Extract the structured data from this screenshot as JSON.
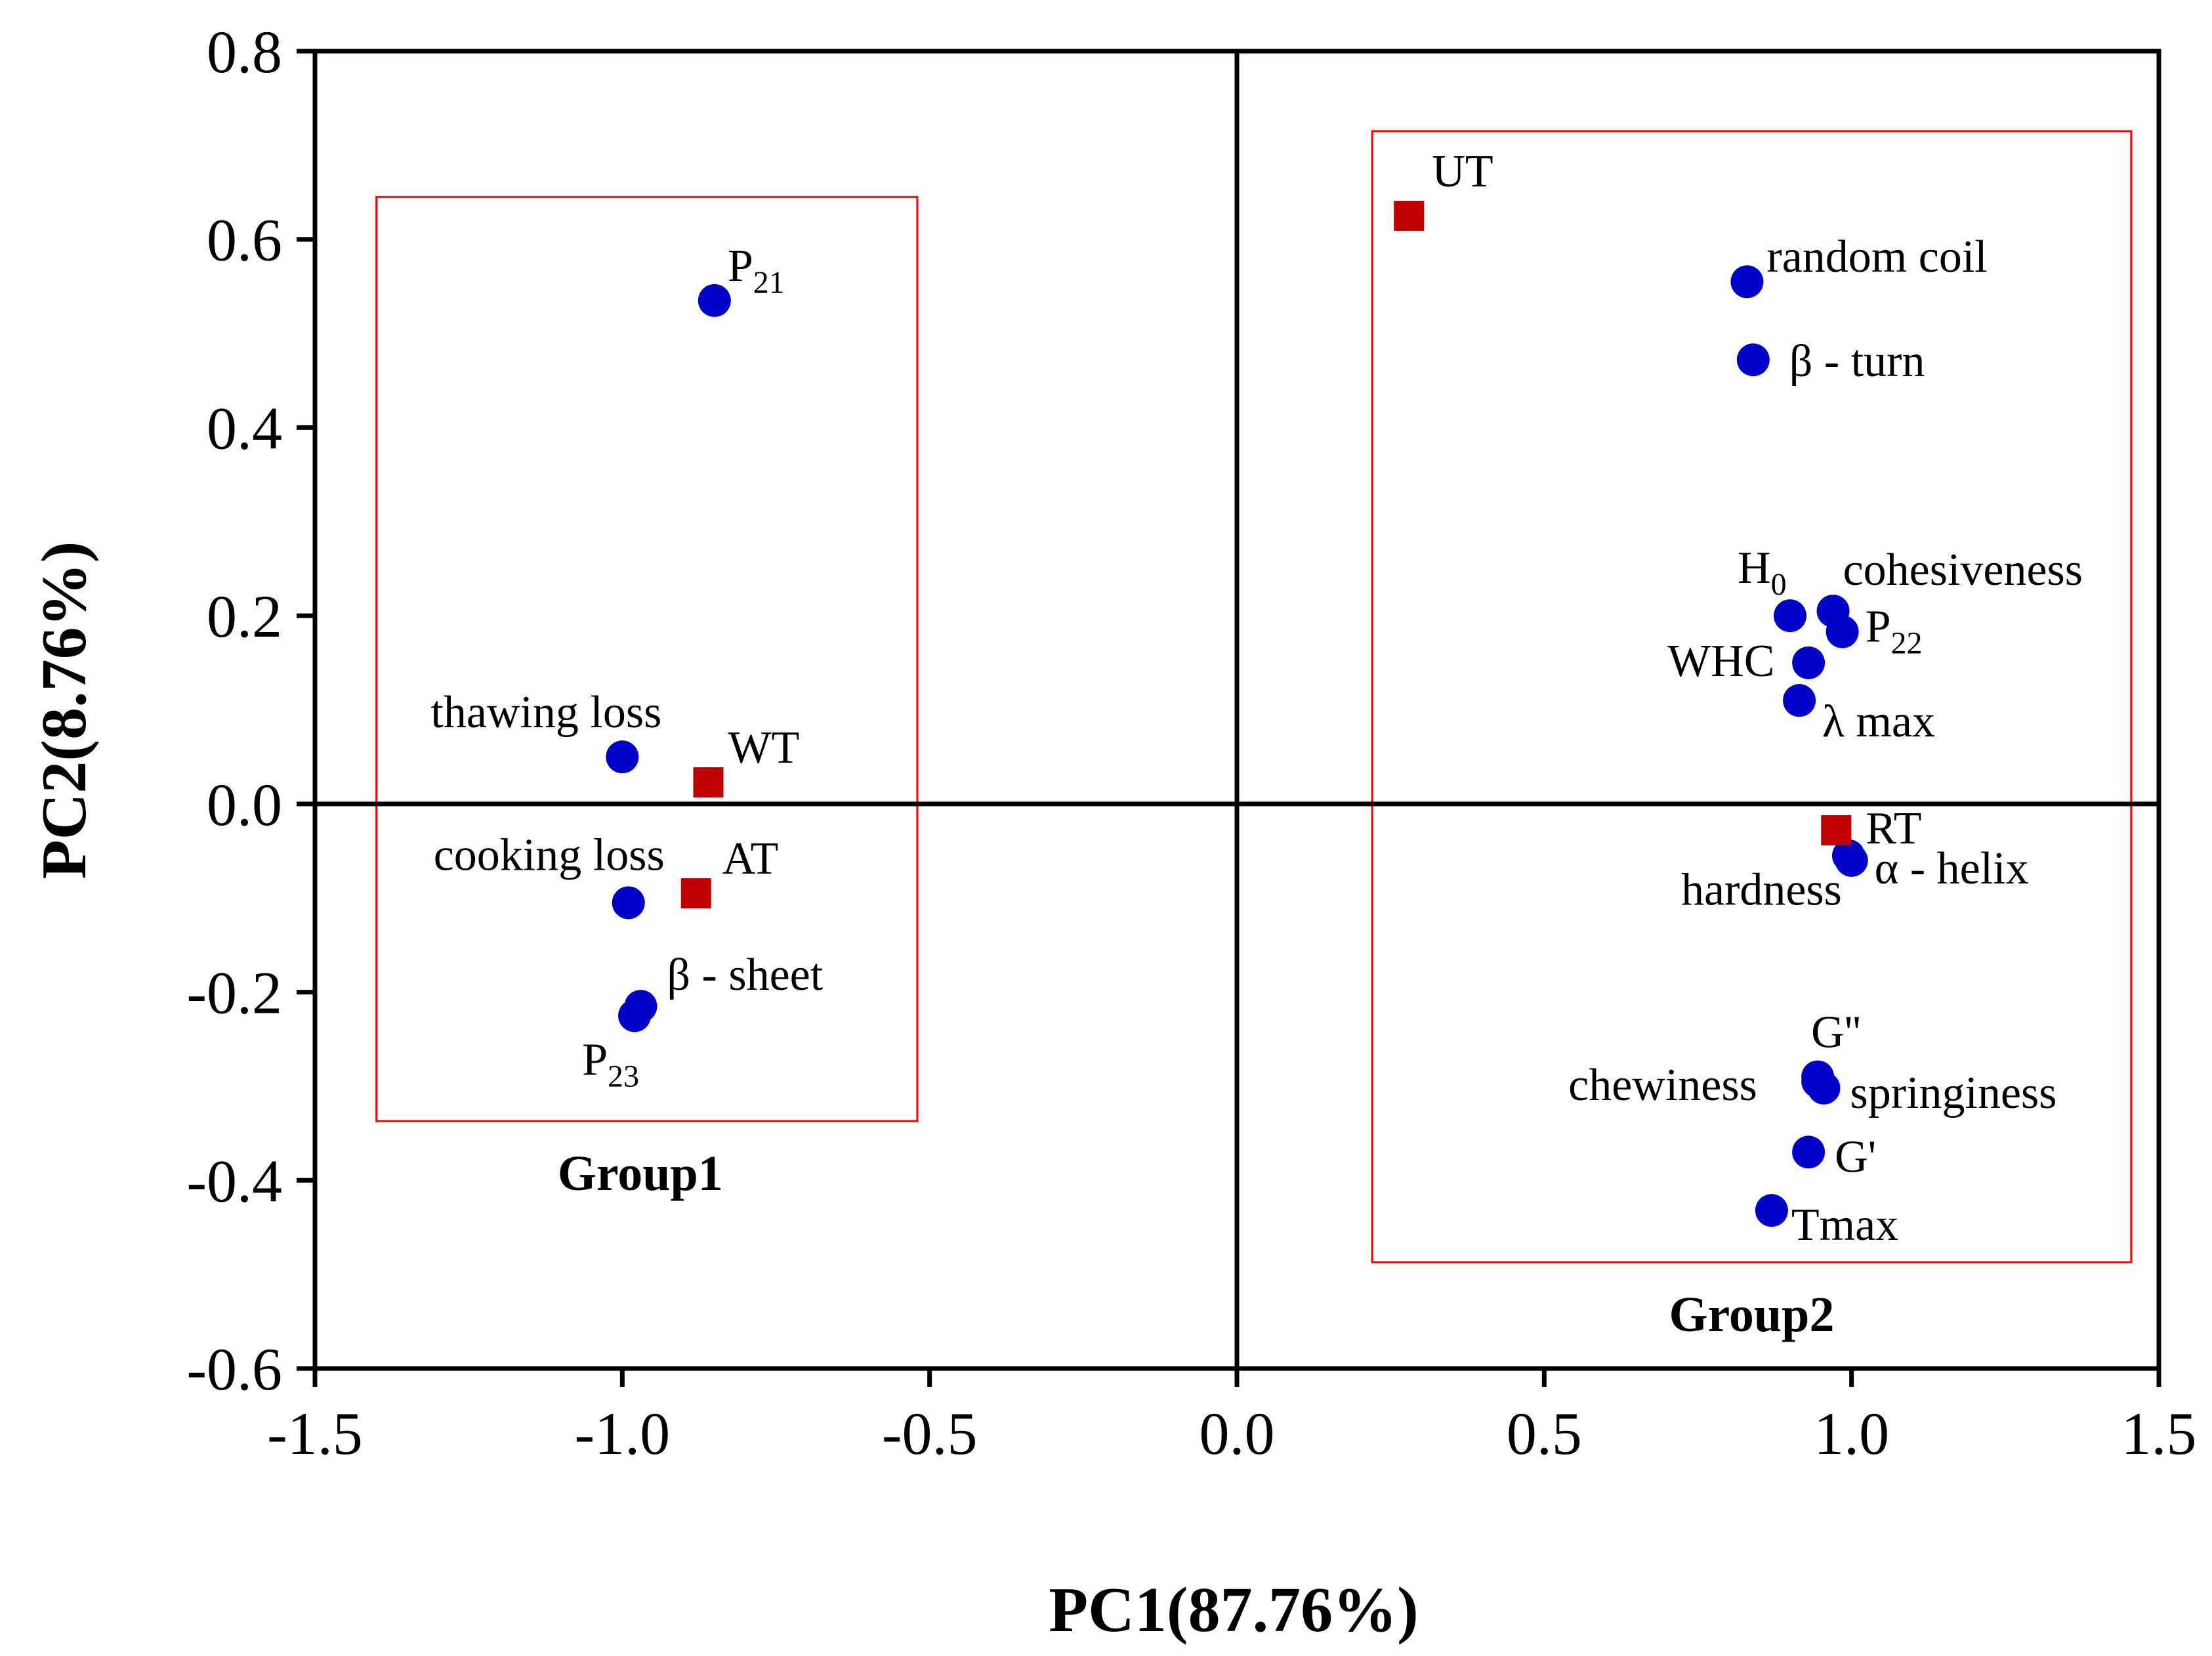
{
  "chart_data": {
    "type": "scatter",
    "xlabel": "PC1(87.76%)",
    "ylabel": "PC2(8.76%)",
    "xlim": [
      -1.5,
      1.5
    ],
    "ylim": [
      -0.6,
      0.8
    ],
    "x_ticks": [
      "-1.5",
      "-1.0",
      "-0.5",
      "0.0",
      "0.5",
      "1.0",
      "1.5"
    ],
    "y_ticks": [
      "0.8",
      "0.6",
      "0.4",
      "0.2",
      "0.0",
      "-0.2",
      "-0.4",
      "-0.6"
    ],
    "colors": {
      "variable": "#0000c8",
      "sample": "#c00000",
      "group_box": "#ff0000"
    },
    "series": [
      {
        "name": "variables",
        "marker": "circle",
        "points": [
          {
            "label": "P",
            "sub": "21",
            "x": -0.85,
            "y": 0.535
          },
          {
            "label": "thawing loss",
            "sub": "",
            "x": -1.0,
            "y": 0.05
          },
          {
            "label": "cooking loss",
            "sub": "",
            "x": -0.99,
            "y": -0.105
          },
          {
            "label": "β - sheet",
            "sub": "",
            "x": -0.97,
            "y": -0.215
          },
          {
            "label": "P",
            "sub": "23",
            "x": -0.98,
            "y": -0.225
          },
          {
            "label": "random coil",
            "sub": "",
            "x": 0.83,
            "y": 0.555
          },
          {
            "label": "β - turn",
            "sub": "",
            "x": 0.84,
            "y": 0.472
          },
          {
            "label": "H",
            "sub": "0",
            "x": 0.9,
            "y": 0.2
          },
          {
            "label": "cohesiveness",
            "sub": "",
            "x": 0.97,
            "y": 0.205
          },
          {
            "label": "P",
            "sub": "22",
            "x": 0.985,
            "y": 0.183
          },
          {
            "label": "WHC",
            "sub": "",
            "x": 0.93,
            "y": 0.15
          },
          {
            "label": "λ max",
            "sub": "",
            "x": 0.915,
            "y": 0.11
          },
          {
            "label": "α - helix",
            "sub": "",
            "x": 1.0,
            "y": -0.06
          },
          {
            "label": "hardness",
            "sub": "",
            "x": 0.995,
            "y": -0.055
          },
          {
            "label": "G''",
            "sub": "",
            "x": 0.945,
            "y": -0.29
          },
          {
            "label": "chewiness",
            "sub": "",
            "x": 0.945,
            "y": -0.295
          },
          {
            "label": "springiness",
            "sub": "",
            "x": 0.955,
            "y": -0.302
          },
          {
            "label": "G'",
            "sub": "",
            "x": 0.93,
            "y": -0.37
          },
          {
            "label": "Tmax",
            "sub": "",
            "x": 0.87,
            "y": -0.432
          }
        ]
      },
      {
        "name": "samples",
        "marker": "square",
        "points": [
          {
            "label": "UT",
            "sub": "",
            "x": 0.28,
            "y": 0.625
          },
          {
            "label": "WT",
            "sub": "",
            "x": -0.86,
            "y": 0.023
          },
          {
            "label": "AT",
            "sub": "",
            "x": -0.88,
            "y": -0.095
          },
          {
            "label": "RT",
            "sub": "",
            "x": 0.975,
            "y": -0.028
          }
        ]
      }
    ],
    "groups": [
      {
        "label": "Group1",
        "x_range": [
          -1.4,
          -0.52
        ],
        "y_range": [
          -0.337,
          0.645
        ]
      },
      {
        "label": "Group2",
        "x_range": [
          0.22,
          1.455
        ],
        "y_range": [
          -0.487,
          0.715
        ]
      }
    ]
  }
}
